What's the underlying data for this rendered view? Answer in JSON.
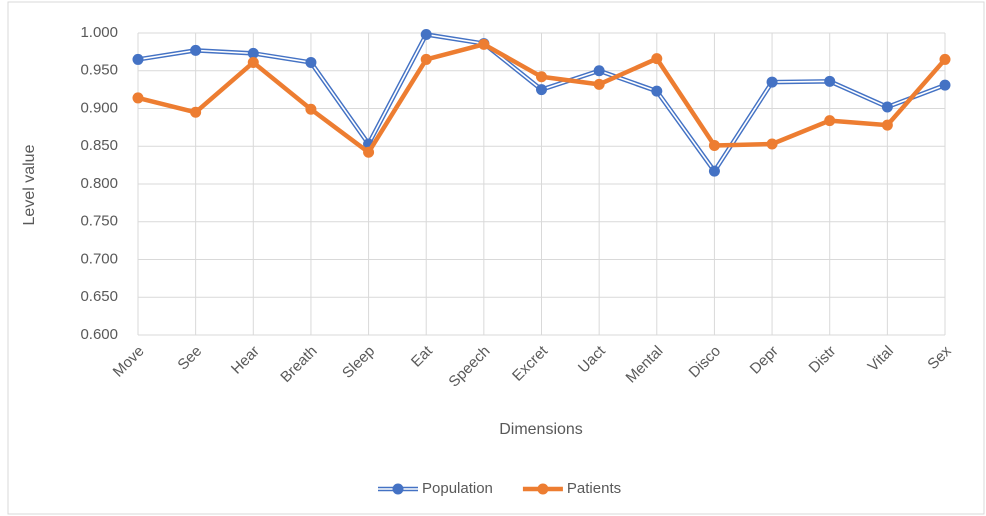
{
  "chart_data": {
    "type": "line",
    "x_label": "Dimensions",
    "y_label": "Level value",
    "categories": [
      "Move",
      "See",
      "Hear",
      "Breath",
      "Sleep",
      "Eat",
      "Speech",
      "Excret",
      "Uact",
      "Mental",
      "Disco",
      "Depr",
      "Distr",
      "Vital",
      "Sex"
    ],
    "series": [
      {
        "name": "Population",
        "color": "#4472c4",
        "style": "double",
        "values": [
          0.965,
          0.977,
          0.973,
          0.961,
          0.853,
          0.998,
          0.986,
          0.925,
          0.95,
          0.923,
          0.817,
          0.935,
          0.936,
          0.902,
          0.931
        ]
      },
      {
        "name": "Patients",
        "color": "#ed7d31",
        "style": "solid",
        "values": [
          0.914,
          0.895,
          0.961,
          0.899,
          0.842,
          0.965,
          0.985,
          0.942,
          0.932,
          0.966,
          0.851,
          0.853,
          0.884,
          0.878,
          0.965
        ]
      }
    ],
    "ylim": [
      0.6,
      1.0
    ],
    "yticks": [
      {
        "value": 0.6,
        "label": "0.600"
      },
      {
        "value": 0.65,
        "label": "0.650"
      },
      {
        "value": 0.7,
        "label": "0.700"
      },
      {
        "value": 0.75,
        "label": "0.750"
      },
      {
        "value": 0.8,
        "label": "0.800"
      },
      {
        "value": 0.85,
        "label": "0.850"
      },
      {
        "value": 0.9,
        "label": "0.900"
      },
      {
        "value": 0.95,
        "label": "0.950"
      },
      {
        "value": 1.0,
        "label": "1.000"
      }
    ],
    "grid": true,
    "legend": "bottom"
  }
}
